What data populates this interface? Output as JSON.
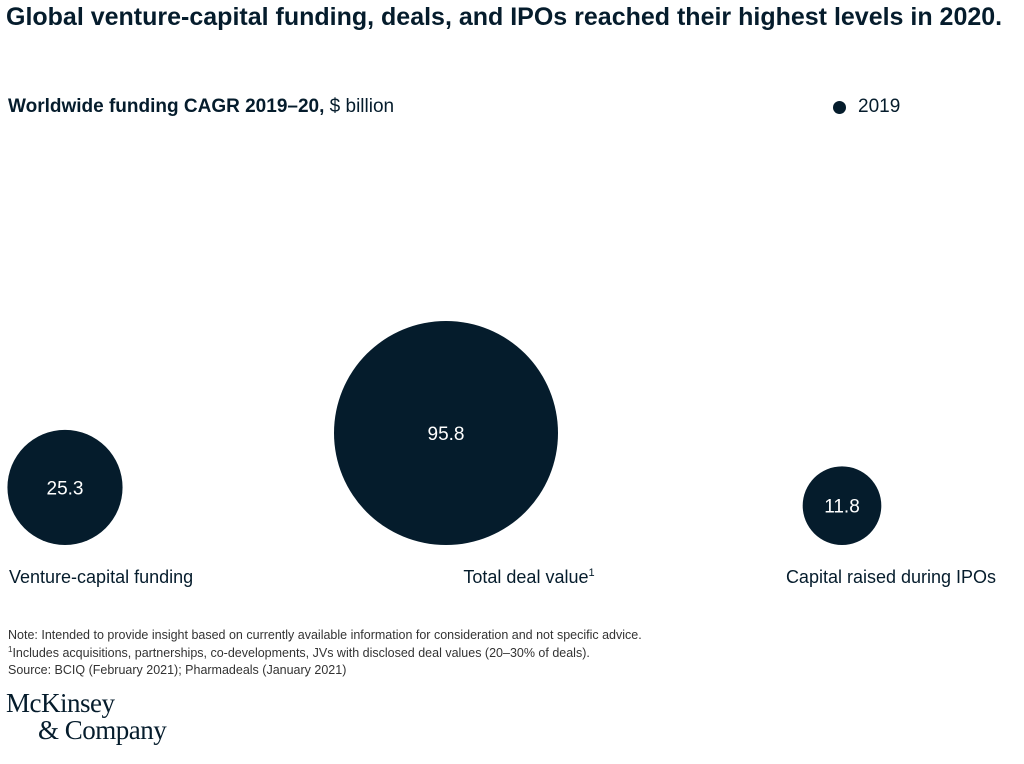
{
  "title": "Global venture-capital funding, deals, and IPOs reached their highest levels in 2020.",
  "subtitle": {
    "bold": "Worldwide funding CAGR 2019–20,",
    "unit": " $ billion"
  },
  "chart_data": {
    "type": "bubble",
    "categories": [
      "Venture-capital funding",
      "Total deal value",
      "Capital raised during IPOs"
    ],
    "category_footnote_marks": [
      "",
      "1",
      ""
    ],
    "series": [
      {
        "name": "2019",
        "values": [
          25.3,
          95.8,
          11.8
        ]
      }
    ],
    "value_labels": [
      "25.3",
      "95.8",
      "11.8"
    ],
    "legend": "top-right",
    "color": "#051c2c",
    "label_color": "#ffffff"
  },
  "footnotes": {
    "note": "Note: Intended to provide insight based on currently available information for consideration and not specific advice.",
    "mark": "1",
    "note1": "Includes acquisitions, partnerships, co-developments, JVs with disclosed deal values (20–30% of deals).",
    "source": "Source: BCIQ (February 2021); Pharmadeals (January 2021)"
  },
  "logo": {
    "line1": "McKinsey",
    "line2": "& Company"
  }
}
